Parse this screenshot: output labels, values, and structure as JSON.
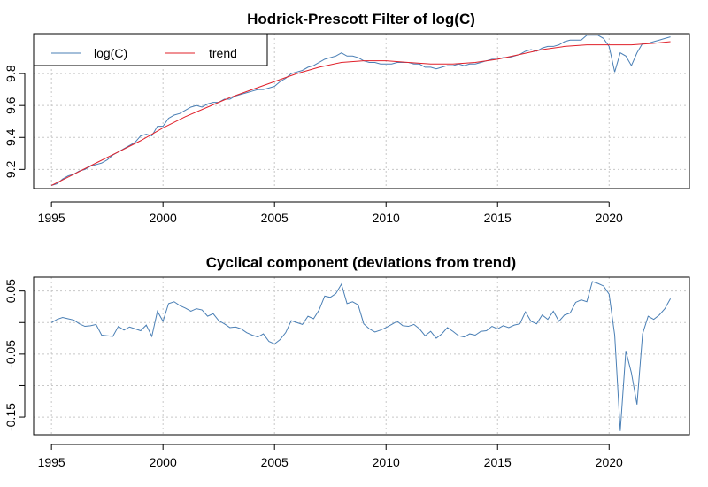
{
  "chart_data": [
    {
      "type": "line",
      "title": "Hodrick-Prescott Filter of log(C)",
      "xlabel": "",
      "ylabel": "",
      "xlim": [
        1994.2,
        2023.6
      ],
      "ylim": [
        9.08,
        10.05
      ],
      "x_ticks": [
        1995,
        2000,
        2005,
        2010,
        2015,
        2020
      ],
      "y_ticks": [
        9.2,
        9.4,
        9.6,
        9.8
      ],
      "grid": true,
      "legend": {
        "placement": "top-left",
        "entries": [
          "log(C)",
          "trend"
        ]
      },
      "series": [
        {
          "name": "log(C)",
          "color": "#4a7fb5",
          "points": [
            [
              1995.0,
              9.1
            ],
            [
              1995.25,
              9.11
            ],
            [
              1995.5,
              9.14
            ],
            [
              1995.75,
              9.16
            ],
            [
              1996.0,
              9.17
            ],
            [
              1996.25,
              9.19
            ],
            [
              1996.5,
              9.2
            ],
            [
              1996.75,
              9.22
            ],
            [
              1997.0,
              9.23
            ],
            [
              1997.25,
              9.24
            ],
            [
              1997.5,
              9.26
            ],
            [
              1997.75,
              9.29
            ],
            [
              1998.0,
              9.31
            ],
            [
              1998.25,
              9.33
            ],
            [
              1998.5,
              9.35
            ],
            [
              1998.75,
              9.37
            ],
            [
              1999.0,
              9.41
            ],
            [
              1999.25,
              9.42
            ],
            [
              1999.5,
              9.41
            ],
            [
              1999.75,
              9.47
            ],
            [
              2000.0,
              9.47
            ],
            [
              2000.25,
              9.52
            ],
            [
              2000.5,
              9.54
            ],
            [
              2000.75,
              9.55
            ],
            [
              2001.0,
              9.57
            ],
            [
              2001.25,
              9.59
            ],
            [
              2001.5,
              9.6
            ],
            [
              2001.75,
              9.59
            ],
            [
              2002.0,
              9.61
            ],
            [
              2002.25,
              9.62
            ],
            [
              2002.5,
              9.62
            ],
            [
              2002.75,
              9.64
            ],
            [
              2003.0,
              9.64
            ],
            [
              2003.25,
              9.66
            ],
            [
              2003.5,
              9.67
            ],
            [
              2003.75,
              9.68
            ],
            [
              2004.0,
              9.69
            ],
            [
              2004.25,
              9.7
            ],
            [
              2004.5,
              9.7
            ],
            [
              2004.75,
              9.71
            ],
            [
              2005.0,
              9.72
            ],
            [
              2005.25,
              9.75
            ],
            [
              2005.5,
              9.77
            ],
            [
              2005.75,
              9.8
            ],
            [
              2006.0,
              9.81
            ],
            [
              2006.25,
              9.82
            ],
            [
              2006.5,
              9.84
            ],
            [
              2006.75,
              9.85
            ],
            [
              2007.0,
              9.87
            ],
            [
              2007.25,
              9.89
            ],
            [
              2007.5,
              9.9
            ],
            [
              2007.75,
              9.91
            ],
            [
              2008.0,
              9.93
            ],
            [
              2008.25,
              9.91
            ],
            [
              2008.5,
              9.91
            ],
            [
              2008.75,
              9.9
            ],
            [
              2009.0,
              9.88
            ],
            [
              2009.25,
              9.87
            ],
            [
              2009.5,
              9.87
            ],
            [
              2009.75,
              9.86
            ],
            [
              2010.0,
              9.86
            ],
            [
              2010.25,
              9.86
            ],
            [
              2010.5,
              9.87
            ],
            [
              2010.75,
              9.87
            ],
            [
              2011.0,
              9.87
            ],
            [
              2011.25,
              9.86
            ],
            [
              2011.5,
              9.86
            ],
            [
              2011.75,
              9.84
            ],
            [
              2012.0,
              9.84
            ],
            [
              2012.25,
              9.83
            ],
            [
              2012.5,
              9.84
            ],
            [
              2012.75,
              9.85
            ],
            [
              2013.0,
              9.85
            ],
            [
              2013.25,
              9.86
            ],
            [
              2013.5,
              9.85
            ],
            [
              2013.75,
              9.86
            ],
            [
              2014.0,
              9.86
            ],
            [
              2014.25,
              9.87
            ],
            [
              2014.5,
              9.88
            ],
            [
              2014.75,
              9.89
            ],
            [
              2015.0,
              9.89
            ],
            [
              2015.25,
              9.9
            ],
            [
              2015.5,
              9.9
            ],
            [
              2015.75,
              9.91
            ],
            [
              2016.0,
              9.92
            ],
            [
              2016.25,
              9.94
            ],
            [
              2016.5,
              9.95
            ],
            [
              2016.75,
              9.94
            ],
            [
              2017.0,
              9.96
            ],
            [
              2017.25,
              9.97
            ],
            [
              2017.5,
              9.97
            ],
            [
              2017.75,
              9.98
            ],
            [
              2018.0,
              10.0
            ],
            [
              2018.25,
              10.01
            ],
            [
              2018.5,
              10.01
            ],
            [
              2018.75,
              10.01
            ],
            [
              2019.0,
              10.04
            ],
            [
              2019.25,
              10.04
            ],
            [
              2019.5,
              10.04
            ],
            [
              2019.75,
              10.02
            ],
            [
              2020.0,
              9.97
            ],
            [
              2020.25,
              9.81
            ],
            [
              2020.5,
              9.93
            ],
            [
              2020.75,
              9.91
            ],
            [
              2021.0,
              9.85
            ],
            [
              2021.25,
              9.93
            ],
            [
              2021.5,
              9.99
            ],
            [
              2021.75,
              9.99
            ],
            [
              2022.0,
              10.0
            ],
            [
              2022.25,
              10.01
            ],
            [
              2022.5,
              10.02
            ],
            [
              2022.75,
              10.03
            ]
          ]
        },
        {
          "name": "trend",
          "color": "#e0202a",
          "points": [
            [
              1995.0,
              9.1
            ],
            [
              1996.0,
              9.17
            ],
            [
              1997.0,
              9.24
            ],
            [
              1998.0,
              9.31
            ],
            [
              1999.0,
              9.38
            ],
            [
              2000.0,
              9.46
            ],
            [
              2001.0,
              9.53
            ],
            [
              2002.0,
              9.59
            ],
            [
              2003.0,
              9.65
            ],
            [
              2004.0,
              9.7
            ],
            [
              2005.0,
              9.75
            ],
            [
              2006.0,
              9.8
            ],
            [
              2007.0,
              9.84
            ],
            [
              2008.0,
              9.87
            ],
            [
              2009.0,
              9.88
            ],
            [
              2010.0,
              9.88
            ],
            [
              2011.0,
              9.87
            ],
            [
              2012.0,
              9.86
            ],
            [
              2013.0,
              9.86
            ],
            [
              2014.0,
              9.87
            ],
            [
              2015.0,
              9.89
            ],
            [
              2016.0,
              9.92
            ],
            [
              2017.0,
              9.95
            ],
            [
              2018.0,
              9.97
            ],
            [
              2019.0,
              9.98
            ],
            [
              2020.0,
              9.98
            ],
            [
              2021.0,
              9.98
            ],
            [
              2022.0,
              9.99
            ],
            [
              2022.75,
              10.0
            ]
          ]
        }
      ]
    },
    {
      "type": "line",
      "title": "Cyclical component (deviations from trend)",
      "xlabel": "",
      "ylabel": "",
      "xlim": [
        1994.2,
        2023.6
      ],
      "ylim": [
        -0.178,
        0.072
      ],
      "x_ticks": [
        1995,
        2000,
        2005,
        2010,
        2015,
        2020
      ],
      "y_ticks": [
        -0.15,
        -0.1,
        -0.05,
        0.0,
        0.05
      ],
      "y_tick_labels": [
        "-0.15",
        "",
        "-0.05",
        "",
        "0.05"
      ],
      "grid": true,
      "series": [
        {
          "color": "#4a7fb5",
          "points": [
            [
              1995.0,
              0.0
            ],
            [
              1995.25,
              0.005
            ],
            [
              1995.5,
              0.008
            ],
            [
              1995.75,
              0.006
            ],
            [
              1996.0,
              0.004
            ],
            [
              1996.25,
              -0.002
            ],
            [
              1996.5,
              -0.006
            ],
            [
              1996.75,
              -0.005
            ],
            [
              1997.0,
              -0.003
            ],
            [
              1997.25,
              -0.02
            ],
            [
              1997.5,
              -0.021
            ],
            [
              1997.75,
              -0.022
            ],
            [
              1998.0,
              -0.006
            ],
            [
              1998.25,
              -0.012
            ],
            [
              1998.5,
              -0.007
            ],
            [
              1998.75,
              -0.01
            ],
            [
              1999.0,
              -0.013
            ],
            [
              1999.25,
              -0.004
            ],
            [
              1999.5,
              -0.022
            ],
            [
              1999.75,
              0.018
            ],
            [
              2000.0,
              0.002
            ],
            [
              2000.25,
              0.03
            ],
            [
              2000.5,
              0.033
            ],
            [
              2000.75,
              0.027
            ],
            [
              2001.0,
              0.023
            ],
            [
              2001.25,
              0.018
            ],
            [
              2001.5,
              0.022
            ],
            [
              2001.75,
              0.02
            ],
            [
              2002.0,
              0.01
            ],
            [
              2002.25,
              0.014
            ],
            [
              2002.5,
              0.003
            ],
            [
              2002.75,
              -0.002
            ],
            [
              2003.0,
              -0.008
            ],
            [
              2003.25,
              -0.007
            ],
            [
              2003.5,
              -0.01
            ],
            [
              2003.75,
              -0.016
            ],
            [
              2004.0,
              -0.02
            ],
            [
              2004.25,
              -0.023
            ],
            [
              2004.5,
              -0.018
            ],
            [
              2004.75,
              -0.03
            ],
            [
              2005.0,
              -0.034
            ],
            [
              2005.25,
              -0.027
            ],
            [
              2005.5,
              -0.016
            ],
            [
              2005.75,
              0.003
            ],
            [
              2006.0,
              0.0
            ],
            [
              2006.25,
              -0.003
            ],
            [
              2006.5,
              0.01
            ],
            [
              2006.75,
              0.006
            ],
            [
              2007.0,
              0.02
            ],
            [
              2007.25,
              0.042
            ],
            [
              2007.5,
              0.04
            ],
            [
              2007.75,
              0.046
            ],
            [
              2008.0,
              0.061
            ],
            [
              2008.25,
              0.03
            ],
            [
              2008.5,
              0.033
            ],
            [
              2008.75,
              0.028
            ],
            [
              2009.0,
              -0.002
            ],
            [
              2009.25,
              -0.01
            ],
            [
              2009.5,
              -0.015
            ],
            [
              2009.75,
              -0.012
            ],
            [
              2010.0,
              -0.008
            ],
            [
              2010.25,
              -0.003
            ],
            [
              2010.5,
              0.002
            ],
            [
              2010.75,
              -0.005
            ],
            [
              2011.0,
              -0.006
            ],
            [
              2011.25,
              -0.003
            ],
            [
              2011.5,
              -0.01
            ],
            [
              2011.75,
              -0.021
            ],
            [
              2012.0,
              -0.014
            ],
            [
              2012.25,
              -0.025
            ],
            [
              2012.5,
              -0.018
            ],
            [
              2012.75,
              -0.008
            ],
            [
              2013.0,
              -0.014
            ],
            [
              2013.25,
              -0.021
            ],
            [
              2013.5,
              -0.023
            ],
            [
              2013.75,
              -0.018
            ],
            [
              2014.0,
              -0.02
            ],
            [
              2014.25,
              -0.014
            ],
            [
              2014.5,
              -0.013
            ],
            [
              2014.75,
              -0.006
            ],
            [
              2015.0,
              -0.01
            ],
            [
              2015.25,
              -0.005
            ],
            [
              2015.5,
              -0.008
            ],
            [
              2015.75,
              -0.004
            ],
            [
              2016.0,
              -0.002
            ],
            [
              2016.25,
              0.017
            ],
            [
              2016.5,
              0.002
            ],
            [
              2016.75,
              -0.002
            ],
            [
              2017.0,
              0.012
            ],
            [
              2017.25,
              0.005
            ],
            [
              2017.5,
              0.018
            ],
            [
              2017.75,
              0.002
            ],
            [
              2018.0,
              0.012
            ],
            [
              2018.25,
              0.015
            ],
            [
              2018.5,
              0.032
            ],
            [
              2018.75,
              0.036
            ],
            [
              2019.0,
              0.033
            ],
            [
              2019.25,
              0.065
            ],
            [
              2019.5,
              0.062
            ],
            [
              2019.75,
              0.058
            ],
            [
              2020.0,
              0.045
            ],
            [
              2020.25,
              -0.02
            ],
            [
              2020.5,
              -0.172
            ],
            [
              2020.75,
              -0.045
            ],
            [
              2021.0,
              -0.08
            ],
            [
              2021.25,
              -0.13
            ],
            [
              2021.5,
              -0.018
            ],
            [
              2021.75,
              0.01
            ],
            [
              2022.0,
              0.005
            ],
            [
              2022.25,
              0.012
            ],
            [
              2022.5,
              0.022
            ],
            [
              2022.75,
              0.038
            ]
          ]
        }
      ]
    }
  ]
}
